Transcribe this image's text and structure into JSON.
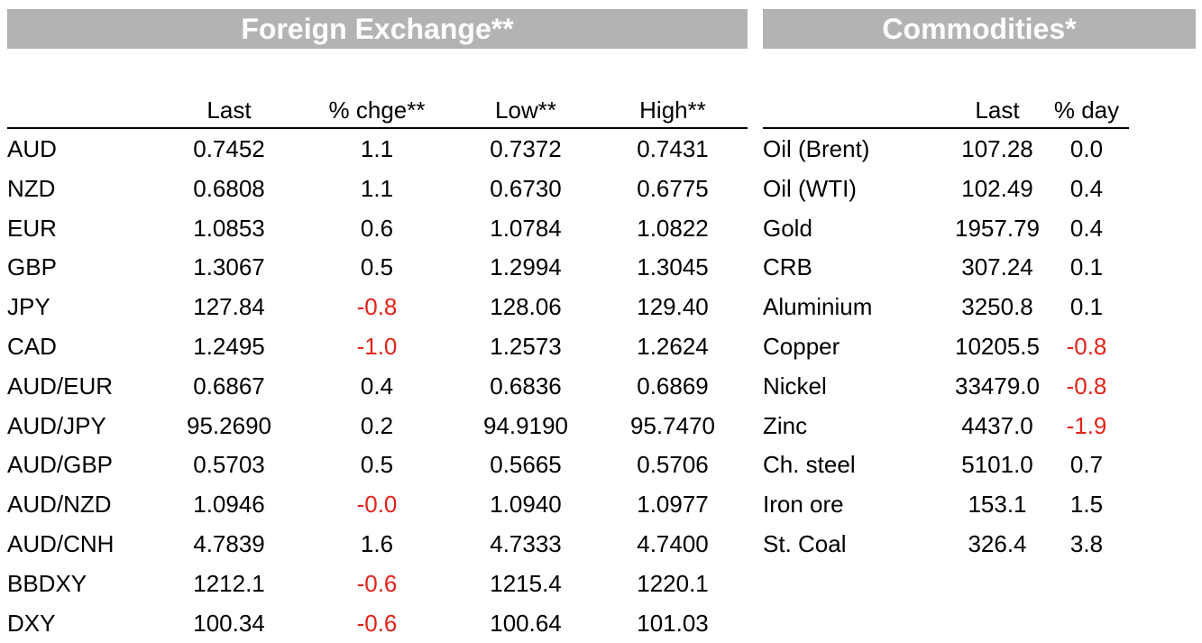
{
  "fx": {
    "title": "Foreign Exchange**",
    "columns": {
      "last": "Last",
      "chg": "% chge**",
      "low": "Low**",
      "high": "High**"
    },
    "rows": [
      {
        "name": "AUD",
        "last": "0.7452",
        "chg": "1.1",
        "low": "0.7372",
        "high": "0.7431"
      },
      {
        "name": "NZD",
        "last": "0.6808",
        "chg": "1.1",
        "low": "0.6730",
        "high": "0.6775"
      },
      {
        "name": "EUR",
        "last": "1.0853",
        "chg": "0.6",
        "low": "1.0784",
        "high": "1.0822"
      },
      {
        "name": "GBP",
        "last": "1.3067",
        "chg": "0.5",
        "low": "1.2994",
        "high": "1.3045"
      },
      {
        "name": "JPY",
        "last": "127.84",
        "chg": "-0.8",
        "low": "128.06",
        "high": "129.40"
      },
      {
        "name": "CAD",
        "last": "1.2495",
        "chg": "-1.0",
        "low": "1.2573",
        "high": "1.2624"
      },
      {
        "name": "AUD/EUR",
        "last": "0.6867",
        "chg": "0.4",
        "low": "0.6836",
        "high": "0.6869"
      },
      {
        "name": "AUD/JPY",
        "last": "95.2690",
        "chg": "0.2",
        "low": "94.9190",
        "high": "95.7470"
      },
      {
        "name": "AUD/GBP",
        "last": "0.5703",
        "chg": "0.5",
        "low": "0.5665",
        "high": "0.5706"
      },
      {
        "name": "AUD/NZD",
        "last": "1.0946",
        "chg": "-0.0",
        "low": "1.0940",
        "high": "1.0977"
      },
      {
        "name": "AUD/CNH",
        "last": "4.7839",
        "chg": "1.6",
        "low": "4.7333",
        "high": "4.7400"
      },
      {
        "name": "BBDXY",
        "last": "1212.1",
        "chg": "-0.6",
        "low": "1215.4",
        "high": "1220.1"
      },
      {
        "name": "DXY",
        "last": "100.34",
        "chg": "-0.6",
        "low": "100.64",
        "high": "101.03"
      }
    ]
  },
  "commodities": {
    "title": "Commodities*",
    "columns": {
      "last": "Last",
      "day": "% day"
    },
    "rows": [
      {
        "name": "Oil (Brent)",
        "last": "107.28",
        "day": "0.0"
      },
      {
        "name": "Oil (WTI)",
        "last": "102.49",
        "day": "0.4"
      },
      {
        "name": "Gold",
        "last": "1957.79",
        "day": "0.4"
      },
      {
        "name": "CRB",
        "last": "307.24",
        "day": "0.1"
      },
      {
        "name": "Aluminium",
        "last": "3250.8",
        "day": "0.1"
      },
      {
        "name": "Copper",
        "last": "10205.5",
        "day": "-0.8"
      },
      {
        "name": "Nickel",
        "last": "33479.0",
        "day": "-0.8"
      },
      {
        "name": "Zinc",
        "last": "4437.0",
        "day": "-1.9"
      },
      {
        "name": "Ch. steel",
        "last": "5101.0",
        "day": "0.7"
      },
      {
        "name": "Iron ore",
        "last": "153.1",
        "day": "1.5"
      },
      {
        "name": "St. Coal",
        "last": "326.4",
        "day": "3.8"
      }
    ]
  },
  "colors": {
    "header_bg": "#b3b3b3",
    "header_text": "#ffffff",
    "negative": "#e2231a",
    "text": "#000000"
  }
}
